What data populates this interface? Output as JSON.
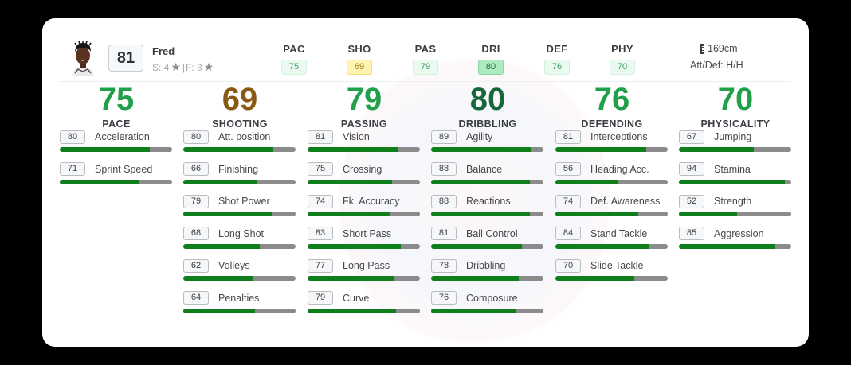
{
  "player": {
    "name": "Fred",
    "overall": "81",
    "skill_moves_label": "S: 4",
    "separator": "|",
    "weak_foot_label": "F: 3",
    "height": "169cm",
    "work_rate": "Att/Def: H/H",
    "avatar_icon": "player-portrait"
  },
  "summary": [
    {
      "label": "PAC",
      "value": "75",
      "style": "light"
    },
    {
      "label": "SHO",
      "value": "69",
      "style": "yellow"
    },
    {
      "label": "PAS",
      "value": "79",
      "style": "light"
    },
    {
      "label": "DRI",
      "value": "80",
      "style": "green"
    },
    {
      "label": "DEF",
      "value": "76",
      "style": "light"
    },
    {
      "label": "PHY",
      "value": "70",
      "style": "light"
    }
  ],
  "colors": {
    "bar_fill": "#0e7f1b",
    "bar_track": "#8b8b8b",
    "stat_green": "#21a04a",
    "stat_dark_green": "#16683a",
    "stat_brown": "#8a5a14"
  },
  "categories": [
    {
      "name": "PACE",
      "value": "75",
      "color": "#21a04a",
      "attributes": [
        {
          "label": "Acceleration",
          "value": "80"
        },
        {
          "label": "Sprint Speed",
          "value": "71"
        }
      ]
    },
    {
      "name": "SHOOTING",
      "value": "69",
      "color": "#8a5a14",
      "attributes": [
        {
          "label": "Att. position",
          "value": "80"
        },
        {
          "label": "Finishing",
          "value": "66"
        },
        {
          "label": "Shot Power",
          "value": "79"
        },
        {
          "label": "Long Shot",
          "value": "68"
        },
        {
          "label": "Volleys",
          "value": "62"
        },
        {
          "label": "Penalties",
          "value": "64"
        }
      ]
    },
    {
      "name": "PASSING",
      "value": "79",
      "color": "#21a04a",
      "attributes": [
        {
          "label": "Vision",
          "value": "81"
        },
        {
          "label": "Crossing",
          "value": "75"
        },
        {
          "label": "Fk. Accuracy",
          "value": "74"
        },
        {
          "label": "Short Pass",
          "value": "83"
        },
        {
          "label": "Long Pass",
          "value": "77"
        },
        {
          "label": "Curve",
          "value": "79"
        }
      ]
    },
    {
      "name": "DRIBBLING",
      "value": "80",
      "color": "#16683a",
      "attributes": [
        {
          "label": "Agility",
          "value": "89"
        },
        {
          "label": "Balance",
          "value": "88"
        },
        {
          "label": "Reactions",
          "value": "88"
        },
        {
          "label": "Ball Control",
          "value": "81"
        },
        {
          "label": "Dribbling",
          "value": "78"
        },
        {
          "label": "Composure",
          "value": "76"
        }
      ]
    },
    {
      "name": "DEFENDING",
      "value": "76",
      "color": "#21a04a",
      "attributes": [
        {
          "label": "Interceptions",
          "value": "81"
        },
        {
          "label": "Heading Acc.",
          "value": "56"
        },
        {
          "label": "Def. Awareness",
          "value": "74"
        },
        {
          "label": "Stand Tackle",
          "value": "84"
        },
        {
          "label": "Slide Tackle",
          "value": "70"
        }
      ]
    },
    {
      "name": "PHYSICALITY",
      "value": "70",
      "color": "#21a04a",
      "attributes": [
        {
          "label": "Jumping",
          "value": "67"
        },
        {
          "label": "Stamina",
          "value": "94"
        },
        {
          "label": "Strength",
          "value": "52"
        },
        {
          "label": "Aggression",
          "value": "85"
        }
      ]
    }
  ]
}
